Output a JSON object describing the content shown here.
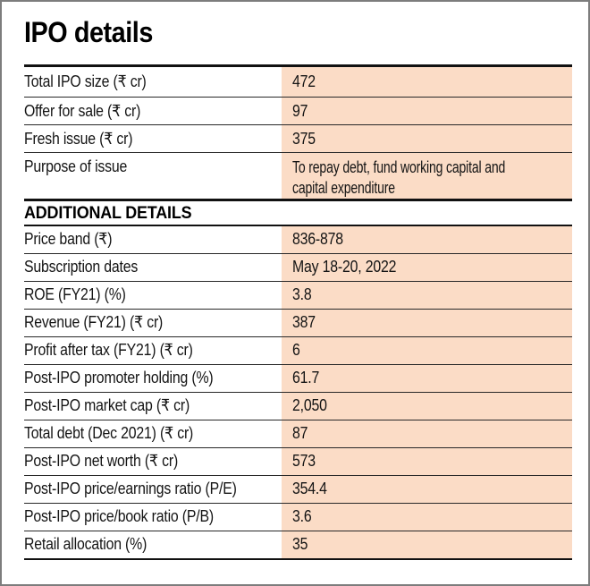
{
  "title": "IPO details",
  "colors": {
    "value_cell_peach": "#fbdcc6",
    "rule_black": "#111111",
    "card_border_grey": "#7d7d7d",
    "text": "#141414"
  },
  "ipo_details": {
    "rows": [
      {
        "label": "Total IPO size (₹ cr)",
        "value": "472"
      },
      {
        "label": "Offer for sale (₹ cr)",
        "value": "97"
      },
      {
        "label": "Fresh issue (₹ cr)",
        "value": "375"
      },
      {
        "label": "Purpose of issue",
        "value": "To repay debt, fund working capital and capital expenditure"
      }
    ]
  },
  "additional_details": {
    "heading": "ADDITIONAL DETAILS",
    "rows": [
      {
        "label": "Price band (₹)",
        "value": "836-878"
      },
      {
        "label": "Subscription dates",
        "value": "May 18-20, 2022"
      },
      {
        "label": "ROE (FY21) (%)",
        "value": "3.8"
      },
      {
        "label": "Revenue (FY21) (₹ cr)",
        "value": "387"
      },
      {
        "label": "Profit after tax (FY21) (₹ cr)",
        "value": "6"
      },
      {
        "label": "Post-IPO promoter holding (%)",
        "value": "61.7"
      },
      {
        "label": "Post-IPO market cap (₹ cr)",
        "value": "2,050"
      },
      {
        "label": "Total debt (Dec 2021) (₹ cr)",
        "value": "87"
      },
      {
        "label": "Post-IPO net worth (₹ cr)",
        "value": "573"
      },
      {
        "label": "Post-IPO price/earnings ratio (P/E)",
        "value": "354.4"
      },
      {
        "label": "Post-IPO price/book ratio (P/B)",
        "value": "3.6"
      },
      {
        "label": "Retail allocation (%)",
        "value": "35"
      }
    ]
  },
  "chart_data": {
    "type": "table",
    "title": "IPO details",
    "sections": [
      {
        "heading": "",
        "rows": [
          [
            "Total IPO size (₹ cr)",
            "472"
          ],
          [
            "Offer for sale (₹ cr)",
            "97"
          ],
          [
            "Fresh issue (₹ cr)",
            "375"
          ],
          [
            "Purpose of issue",
            "To repay debt, fund working capital and capital expenditure"
          ]
        ]
      },
      {
        "heading": "ADDITIONAL DETAILS",
        "rows": [
          [
            "Price band (₹)",
            "836-878"
          ],
          [
            "Subscription dates",
            "May 18-20, 2022"
          ],
          [
            "ROE (FY21) (%)",
            "3.8"
          ],
          [
            "Revenue (FY21) (₹ cr)",
            "387"
          ],
          [
            "Profit after tax (FY21) (₹ cr)",
            "6"
          ],
          [
            "Post-IPO promoter holding (%)",
            "61.7"
          ],
          [
            "Post-IPO market cap (₹ cr)",
            "2,050"
          ],
          [
            "Total debt (Dec 2021) (₹ cr)",
            "87"
          ],
          [
            "Post-IPO net worth (₹ cr)",
            "573"
          ],
          [
            "Post-IPO price/earnings ratio (P/E)",
            "354.4"
          ],
          [
            "Post-IPO price/book ratio (P/B)",
            "3.6"
          ],
          [
            "Retail allocation (%)",
            "35"
          ]
        ]
      }
    ],
    "layout": {
      "value_column_highlighted": true,
      "highlight_color": "#fbdcc6",
      "grid": "horizontal-rules"
    }
  }
}
